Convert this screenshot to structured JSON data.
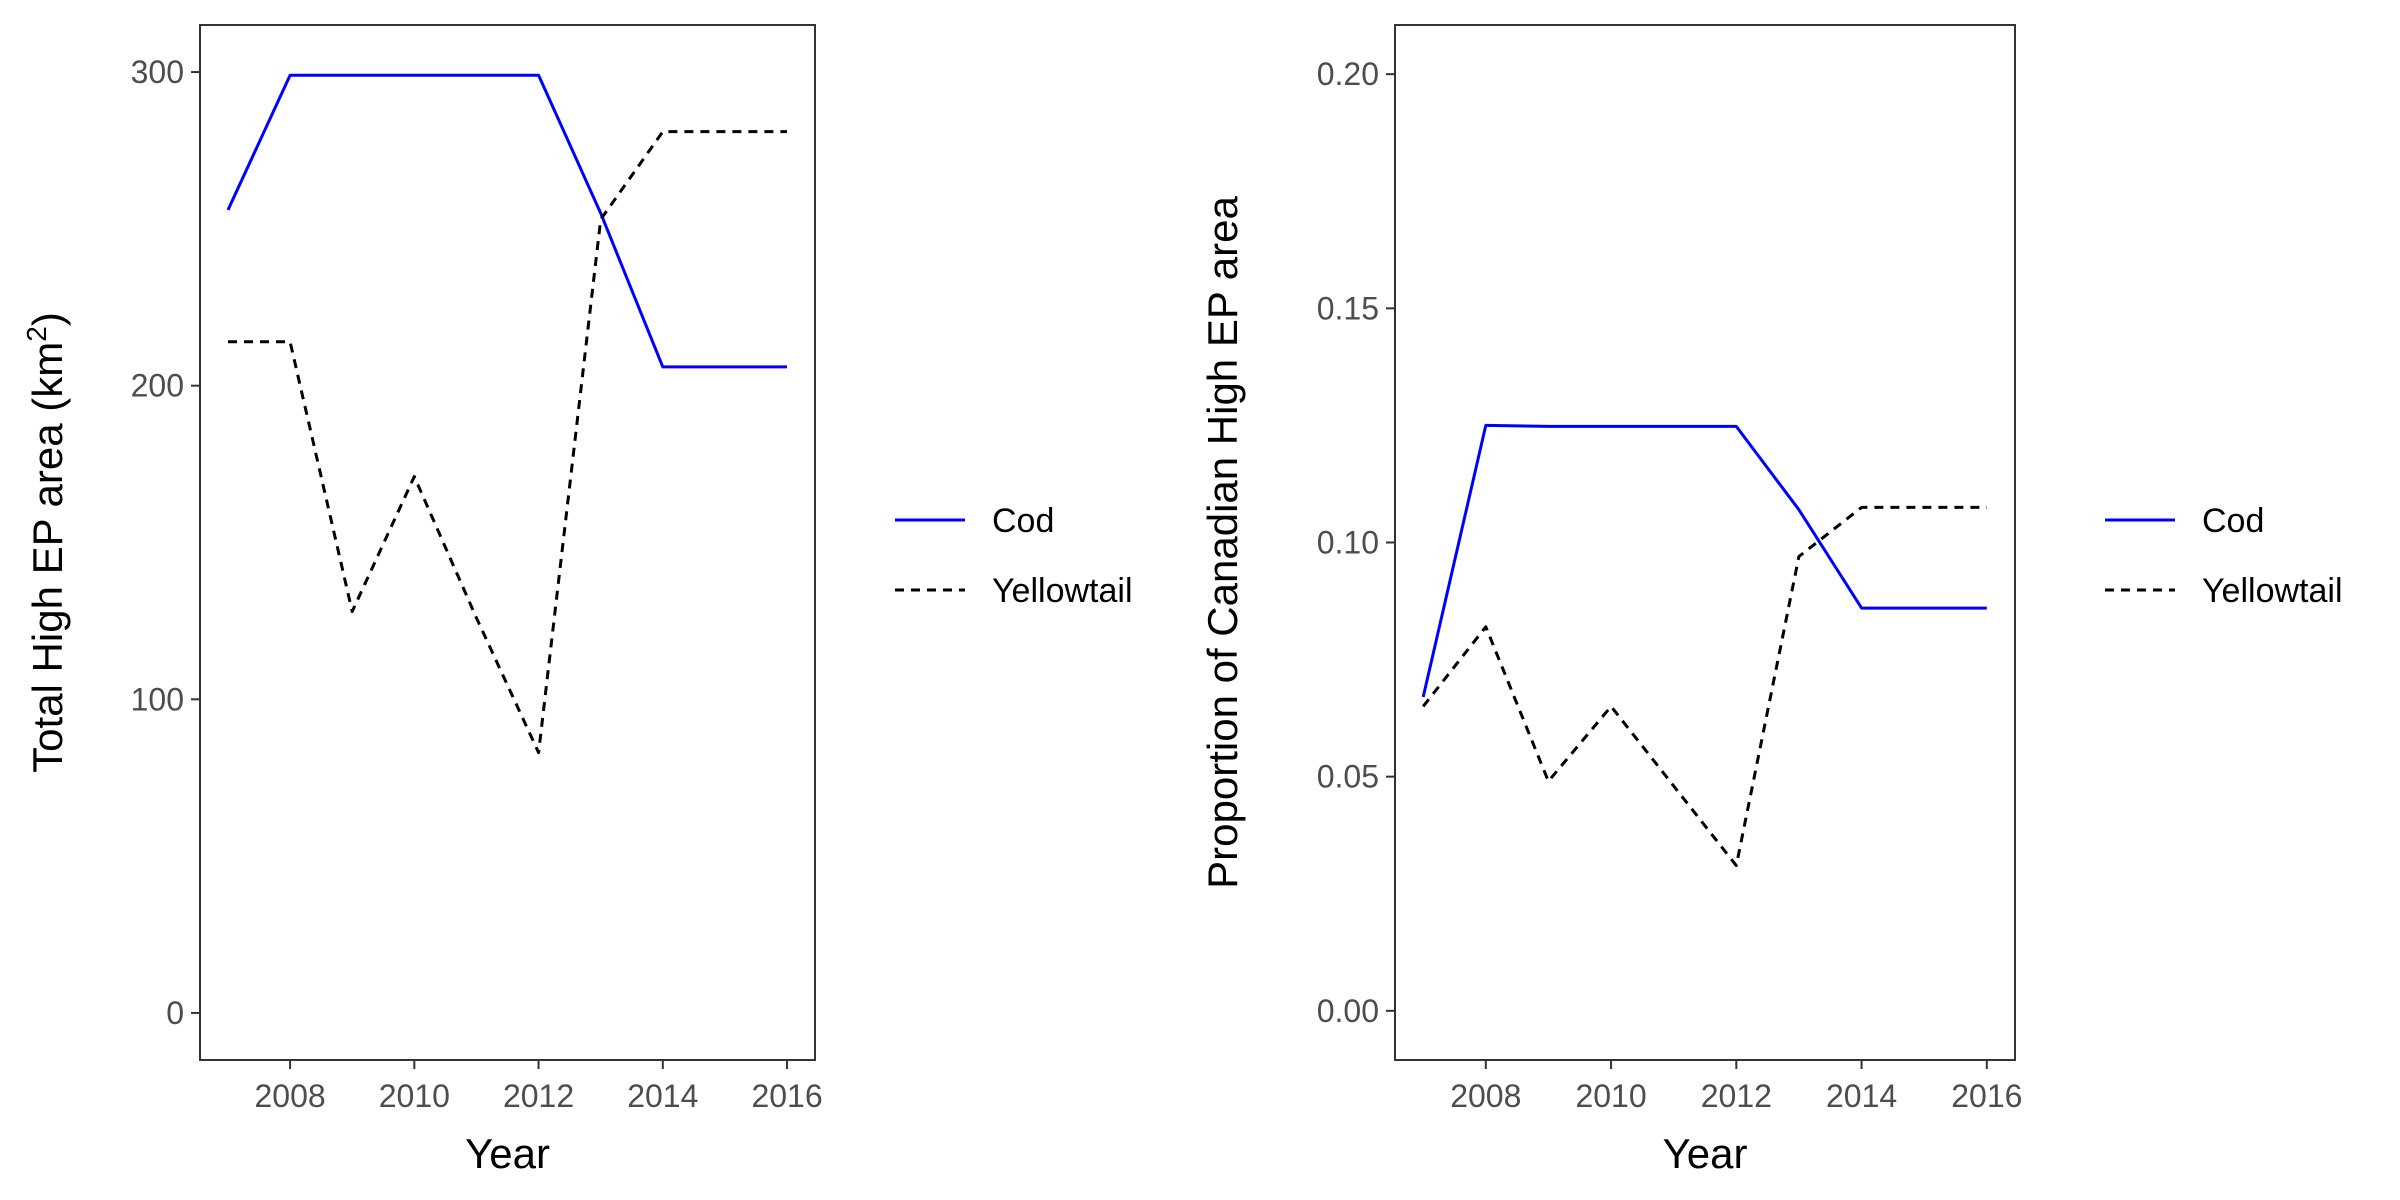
{
  "chart_data": [
    {
      "type": "line",
      "xlabel": "Year",
      "ylabel": "Total High EP area (km",
      "ylabel_superscript": "2",
      "ylabel_suffix": ")",
      "x": [
        2007,
        2008,
        2009,
        2010,
        2011,
        2012,
        2013,
        2014,
        2015,
        2016
      ],
      "xlim": [
        2006.55,
        2016.45
      ],
      "ylim": [
        -15,
        315
      ],
      "x_ticks": [
        2008,
        2010,
        2012,
        2014,
        2016
      ],
      "x_tick_labels": [
        "2008",
        "2010",
        "2012",
        "2014",
        "2016"
      ],
      "y_ticks": [
        0,
        100,
        200,
        300
      ],
      "y_tick_labels": [
        "0",
        "100",
        "200",
        "300"
      ],
      "grid": false,
      "legend_position": "right",
      "series": [
        {
          "name": "Cod",
          "color": "#0000ff",
          "dash": "solid",
          "values": [
            256,
            299,
            299,
            299,
            299,
            299,
            255,
            206,
            206,
            206
          ]
        },
        {
          "name": "Yellowtail",
          "color": "#000000",
          "dash": "dashed",
          "values": [
            214,
            214,
            128,
            171,
            126,
            83,
            253,
            281,
            281,
            281
          ]
        }
      ]
    },
    {
      "type": "line",
      "xlabel": "Year",
      "ylabel": "Proportion of Canadian High EP area",
      "x": [
        2007,
        2008,
        2009,
        2010,
        2011,
        2012,
        2013,
        2014,
        2015,
        2016
      ],
      "xlim": [
        2006.55,
        2016.45
      ],
      "ylim": [
        -0.0105,
        0.2105
      ],
      "x_ticks": [
        2008,
        2010,
        2012,
        2014,
        2016
      ],
      "x_tick_labels": [
        "2008",
        "2010",
        "2012",
        "2014",
        "2016"
      ],
      "y_ticks": [
        0,
        0.05,
        0.1,
        0.15,
        0.2
      ],
      "y_tick_labels": [
        "0.00",
        "0.05",
        "0.10",
        "0.15",
        "0.20"
      ],
      "grid": false,
      "legend_position": "right",
      "series": [
        {
          "name": "Cod",
          "color": "#0000ff",
          "dash": "solid",
          "values": [
            0.067,
            0.125,
            0.1248,
            0.1248,
            0.1248,
            0.1248,
            0.107,
            0.086,
            0.086,
            0.086
          ]
        },
        {
          "name": "Yellowtail",
          "color": "#000000",
          "dash": "dashed",
          "values": [
            0.065,
            0.082,
            0.049,
            0.065,
            0.048,
            0.031,
            0.097,
            0.1075,
            0.1075,
            0.1075
          ]
        }
      ]
    }
  ]
}
